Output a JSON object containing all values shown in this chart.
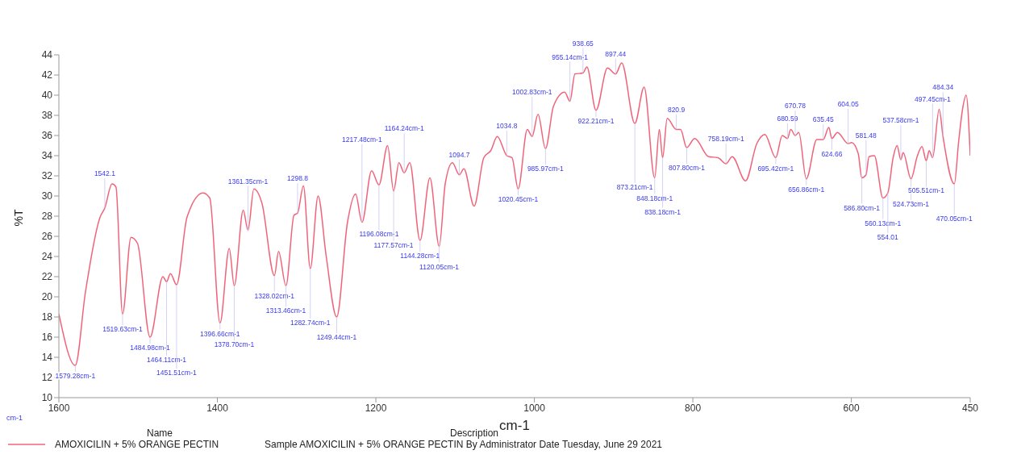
{
  "chart_data": {
    "type": "line",
    "xlabel": "cm-1",
    "ylabel": "%T",
    "xlim": [
      1600,
      450
    ],
    "xticks": [
      1600,
      1400,
      1200,
      1000,
      800,
      600,
      450
    ],
    "ylim": [
      10,
      44
    ],
    "yticks": [
      10,
      12,
      14,
      16,
      18,
      20,
      22,
      24,
      26,
      28,
      30,
      32,
      34,
      36,
      38,
      40,
      42,
      44
    ],
    "grid": false,
    "marker": "none",
    "line_style": "solid",
    "legend": "bottom",
    "legend_title": "Name",
    "series": [
      {
        "name": "AMOXICILIN + 5% ORANGE PECTIN",
        "color": "#f0647a",
        "x": [
          1600,
          1579.28,
          1566.6,
          1548,
          1542.1,
          1532.9,
          1528,
          1519.63,
          1509,
          1500.8,
          1484.98,
          1468.7,
          1464.11,
          1459.2,
          1451.51,
          1438.3,
          1418,
          1409.6,
          1396.66,
          1385,
          1378.7,
          1367.4,
          1361.35,
          1353.9,
          1343.8,
          1328.02,
          1322.8,
          1313.46,
          1303.3,
          1298.8,
          1291.4,
          1282.74,
          1272.9,
          1262.8,
          1249.44,
          1235.8,
          1225.6,
          1217.48,
          1205.4,
          1196.08,
          1185.2,
          1177.57,
          1170.9,
          1164.24,
          1157.2,
          1144.28,
          1131.8,
          1120.05,
          1112.5,
          1103.4,
          1094.7,
          1088.9,
          1076,
          1063.8,
          1055,
          1046.8,
          1034.8,
          1028.2,
          1020.45,
          1008.9,
          1002.83,
          995.4,
          985.97,
          975.9,
          961.7,
          955.14,
          948.8,
          938.65,
          933.7,
          922.21,
          907.7,
          897.44,
          889.8,
          873.21,
          861.5,
          848.18,
          842.3,
          838.18,
          832.4,
          820.9,
          815.5,
          807.8,
          797.7,
          780,
          768.3,
          758.19,
          750.4,
          733.5,
          719.3,
          709.2,
          695.42,
          687.2,
          680.59,
          676.5,
          670.78,
          666.3,
          656.86,
          643.6,
          635.45,
          628.4,
          624.66,
          617.6,
          604.05,
          599.7,
          591.3,
          586.8,
          581.48,
          577.7,
          571,
          560.13,
          554.01,
          547.3,
          542.3,
          537.58,
          534.6,
          524.73,
          517,
          510.9,
          505.51,
          501.8,
          497.45,
          489.2,
          484.34,
          470.05,
          464.6,
          459.5,
          455.1,
          450
        ],
        "values": [
          18.3,
          13.2,
          20.4,
          27.9,
          28.8,
          31.2,
          30.9,
          18.3,
          25.9,
          25.3,
          16.0,
          22.0,
          21.5,
          22.3,
          21.2,
          27.9,
          30.3,
          29.8,
          17.4,
          24.8,
          21.1,
          28.6,
          26.6,
          30.7,
          29.3,
          22.1,
          24.5,
          21.1,
          28.1,
          28.3,
          31.0,
          22.8,
          30.0,
          24.1,
          18.0,
          27.4,
          30.2,
          27.4,
          32.5,
          31.1,
          35.0,
          30.5,
          33.3,
          32.3,
          33.3,
          25.6,
          31.8,
          25.0,
          31.2,
          33.3,
          32.1,
          32.7,
          29.0,
          33.8,
          34.5,
          35.9,
          34.0,
          33.8,
          30.7,
          36.6,
          35.9,
          38.1,
          34.7,
          38.9,
          40.3,
          39.4,
          42.1,
          42.2,
          42.8,
          38.5,
          42.7,
          42.1,
          43.2,
          37.2,
          40.8,
          31.8,
          36.6,
          33.8,
          37.7,
          36.6,
          36.6,
          34.8,
          35.7,
          33.9,
          33.8,
          33.2,
          33.9,
          31.5,
          35.2,
          36.1,
          33.8,
          36.0,
          35.7,
          36.6,
          36.0,
          36.3,
          31.7,
          35.6,
          35.6,
          36.8,
          35.7,
          36.3,
          35.2,
          35.3,
          34.2,
          31.8,
          32.1,
          33.9,
          34.0,
          29.8,
          30.3,
          33.8,
          35.0,
          33.6,
          34.3,
          31.7,
          33.9,
          34.9,
          33.5,
          34.5,
          33.8,
          38.6,
          35.9,
          31.2,
          35.4,
          38.7,
          40.0,
          34.0
        ]
      }
    ],
    "annotations": [
      "Description",
      "Sample AMOXICILIN + 5% ORANGE PECTIN By Administrator Date Tuesday, June 29 2021",
      "cm-1",
      {
        "text": "1579.28cm-1",
        "x": 1579.28,
        "y": 13.2
      },
      {
        "text": "1542.1",
        "x": 1542.1,
        "y": 28.8
      },
      {
        "text": "1519.63cm-1",
        "x": 1519.63,
        "y": 18.3
      },
      {
        "text": "1484.98cm-1",
        "x": 1484.98,
        "y": 16.0
      },
      {
        "text": "1464.11cm-1",
        "x": 1464.11,
        "y": 21.5
      },
      {
        "text": "1451.51cm-1",
        "x": 1451.51,
        "y": 21.2
      },
      {
        "text": "1396.66cm-1",
        "x": 1396.66,
        "y": 17.4
      },
      {
        "text": "1378.70cm-1",
        "x": 1378.7,
        "y": 21.1
      },
      {
        "text": "1361.35cm-1",
        "x": 1361.35,
        "y": 26.6
      },
      {
        "text": "1328.02cm-1",
        "x": 1328.02,
        "y": 22.1
      },
      {
        "text": "1313.46cm-1",
        "x": 1313.46,
        "y": 21.1
      },
      {
        "text": "1298.8",
        "x": 1298.8,
        "y": 28.3
      },
      {
        "text": "1282.74cm-1",
        "x": 1282.74,
        "y": 22.8
      },
      {
        "text": "1249.44cm-1",
        "x": 1249.44,
        "y": 18.0
      },
      {
        "text": "1217.48cm-1",
        "x": 1217.48,
        "y": 27.4
      },
      {
        "text": "1196.08cm-1",
        "x": 1196.08,
        "y": 31.1
      },
      {
        "text": "1177.57cm-1",
        "x": 1177.57,
        "y": 30.5
      },
      {
        "text": "1164.24cm-1",
        "x": 1164.24,
        "y": 32.3
      },
      {
        "text": "1144.28cm-1",
        "x": 1144.28,
        "y": 25.6
      },
      {
        "text": "1120.05cm-1",
        "x": 1120.05,
        "y": 25.0
      },
      {
        "text": "1094.7",
        "x": 1094.7,
        "y": 32.1
      },
      {
        "text": "1034.8",
        "x": 1034.8,
        "y": 34.0
      },
      {
        "text": "1020.45cm-1",
        "x": 1020.45,
        "y": 30.7
      },
      {
        "text": "1002.83cm-1",
        "x": 1002.83,
        "y": 35.9
      },
      {
        "text": "985.97cm-1",
        "x": 985.97,
        "y": 34.7
      },
      {
        "text": "955.14cm-1",
        "x": 955.14,
        "y": 39.4
      },
      {
        "text": "938.65",
        "x": 938.65,
        "y": 42.2
      },
      {
        "text": "922.21cm-1",
        "x": 922.21,
        "y": 38.5
      },
      {
        "text": "897.44",
        "x": 897.44,
        "y": 42.1
      },
      {
        "text": "873.21cm-1",
        "x": 873.21,
        "y": 37.2
      },
      {
        "text": "848.18cm-1",
        "x": 848.18,
        "y": 31.8
      },
      {
        "text": "838.18cm-1",
        "x": 838.18,
        "y": 33.8
      },
      {
        "text": "820.9",
        "x": 820.9,
        "y": 36.6
      },
      {
        "text": "807.80cm-1",
        "x": 807.8,
        "y": 34.8
      },
      {
        "text": "758.19cm-1",
        "x": 758.19,
        "y": 33.2
      },
      {
        "text": "695.42cm-1",
        "x": 695.42,
        "y": 33.8
      },
      {
        "text": "680.59",
        "x": 680.59,
        "y": 35.7
      },
      {
        "text": "670.78",
        "x": 670.78,
        "y": 36.0
      },
      {
        "text": "656.86cm-1",
        "x": 656.86,
        "y": 31.7
      },
      {
        "text": "635.45",
        "x": 635.45,
        "y": 35.6
      },
      {
        "text": "624.66",
        "x": 624.66,
        "y": 35.7
      },
      {
        "text": "604.05",
        "x": 604.05,
        "y": 35.2
      },
      {
        "text": "586.80cm-1",
        "x": 586.8,
        "y": 31.8
      },
      {
        "text": "581.48",
        "x": 581.48,
        "y": 32.1
      },
      {
        "text": "560.13cm-1",
        "x": 560.13,
        "y": 29.8
      },
      {
        "text": "554.01",
        "x": 554.01,
        "y": 30.3
      },
      {
        "text": "537.58cm-1",
        "x": 537.58,
        "y": 33.6
      },
      {
        "text": "524.73cm-1",
        "x": 524.73,
        "y": 31.7
      },
      {
        "text": "505.51cm-1",
        "x": 505.51,
        "y": 33.5
      },
      {
        "text": "497.45cm-1",
        "x": 497.45,
        "y": 33.8
      },
      {
        "text": "484.34",
        "x": 484.34,
        "y": 35.9
      },
      {
        "text": "470.05cm-1",
        "x": 470.05,
        "y": 31.2
      }
    ]
  }
}
